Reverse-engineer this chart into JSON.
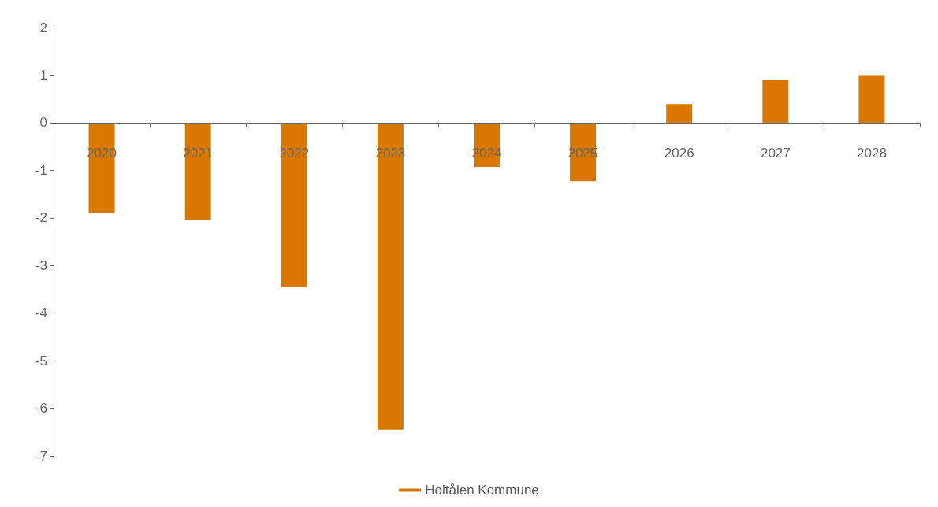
{
  "chart_data": {
    "type": "bar",
    "categories": [
      "2020",
      "2021",
      "2022",
      "2023",
      "2024",
      "2025",
      "2026",
      "2027",
      "2028"
    ],
    "series": [
      {
        "name": "Holtålen Kommune",
        "color": "#d97800",
        "values": [
          -1.9,
          -2.05,
          -3.45,
          -6.45,
          -0.93,
          -1.23,
          0.39,
          0.9,
          1.0
        ]
      }
    ],
    "ylim": [
      -7,
      2
    ],
    "yticks": [
      -7,
      -6,
      -5,
      -4,
      -3,
      -2,
      -1,
      0,
      1,
      2
    ],
    "grid": false,
    "legend": "bottom"
  }
}
